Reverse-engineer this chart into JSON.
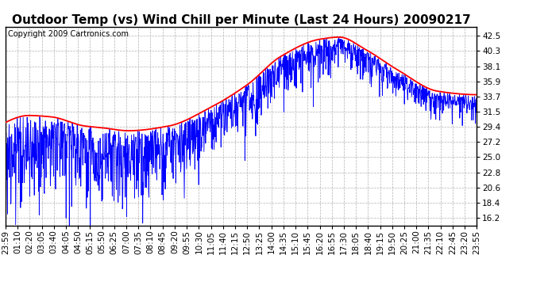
{
  "title": "Outdoor Temp (vs) Wind Chill per Minute (Last 24 Hours) 20090217",
  "copyright": "Copyright 2009 Cartronics.com",
  "yticks": [
    16.2,
    18.4,
    20.6,
    22.8,
    25.0,
    27.2,
    29.4,
    31.5,
    33.7,
    35.9,
    38.1,
    40.3,
    42.5
  ],
  "ymin": 15.1,
  "ymax": 43.8,
  "xtick_labels": [
    "23:59",
    "01:10",
    "02:20",
    "03:05",
    "03:40",
    "04:05",
    "04:50",
    "05:15",
    "05:50",
    "06:25",
    "07:00",
    "07:35",
    "08:10",
    "08:45",
    "09:20",
    "09:55",
    "10:30",
    "11:05",
    "11:40",
    "12:15",
    "12:50",
    "13:25",
    "14:00",
    "14:35",
    "15:10",
    "15:45",
    "16:20",
    "16:55",
    "17:30",
    "18:05",
    "18:40",
    "19:15",
    "19:50",
    "20:25",
    "21:00",
    "21:35",
    "22:10",
    "22:45",
    "23:20",
    "23:55"
  ],
  "title_fontsize": 11,
  "copyright_fontsize": 7,
  "tick_fontsize": 7.5,
  "bg_color": "#ffffff",
  "plot_bg_color": "#ffffff",
  "grid_color": "#aaaaaa",
  "line_color_temp": "#ff0000",
  "line_color_wind": "#0000ff",
  "border_color": "#000000",
  "temp_keypoints_x": [
    0,
    70,
    140,
    240,
    300,
    375,
    500,
    620,
    740,
    840,
    960,
    1020,
    1100,
    1200,
    1320,
    1439
  ],
  "temp_keypoints_y": [
    30.0,
    31.0,
    30.8,
    29.5,
    29.2,
    28.8,
    29.5,
    32.0,
    35.5,
    39.5,
    42.0,
    42.3,
    40.5,
    37.5,
    34.5,
    34.0
  ]
}
